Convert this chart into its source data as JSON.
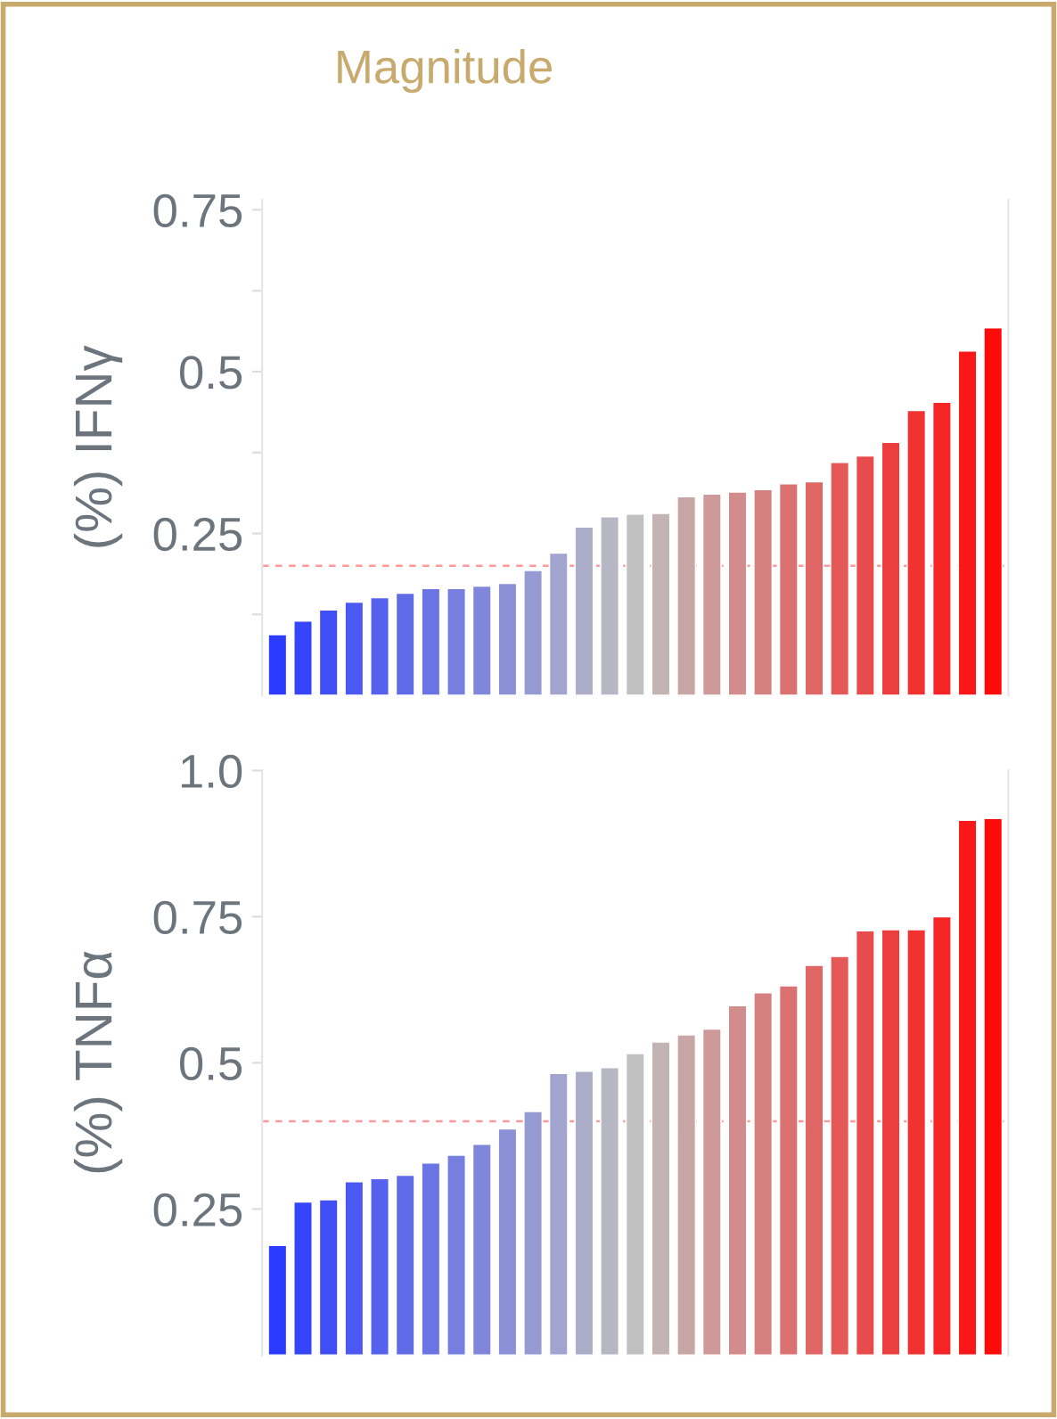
{
  "chart_data": [
    {
      "type": "bar",
      "title": "Magnitude",
      "ylabel": "(%) IFNγ",
      "tick_labels": "y",
      "grid": false,
      "legend": false,
      "categories": [
        null,
        null,
        null,
        null,
        null,
        null,
        null,
        null,
        null,
        null,
        null,
        null,
        null,
        null,
        null,
        null,
        null,
        null,
        null,
        null,
        null,
        null,
        null,
        null,
        null,
        null,
        null,
        null,
        null
      ],
      "values": [
        0.094,
        0.115,
        0.132,
        0.144,
        0.151,
        0.158,
        0.165,
        0.165,
        0.169,
        0.173,
        0.193,
        0.22,
        0.26,
        0.276,
        0.28,
        0.281,
        0.307,
        0.311,
        0.314,
        0.318,
        0.327,
        0.33,
        0.36,
        0.37,
        0.391,
        0.44,
        0.453,
        0.532,
        0.568
      ],
      "colors": [
        "#2b3bff",
        "#3645fa",
        "#404ef6",
        "#4b58f2",
        "#5661ed",
        "#606be8",
        "#6b74e4",
        "#767ee0",
        "#8087db",
        "#8b91d6",
        "#959ad2",
        "#a0a4ce",
        "#abadc9",
        "#b5b7c4",
        "#c0c0c0",
        "#c4b3b3",
        "#c9a6a6",
        "#ce9999",
        "#d28c8c",
        "#d67f7f",
        "#db7272",
        "#e06565",
        "#e45858",
        "#e84b4b",
        "#ed3e3e",
        "#f23131",
        "#f62424",
        "#fa1717",
        "#ff0a0a"
      ],
      "ylim": [
        0,
        0.765
      ],
      "yticks": [
        {
          "value": 0.125,
          "label": null
        },
        0.25,
        {
          "value": 0.375,
          "label": null
        },
        0.5,
        {
          "value": 0.625,
          "label": null
        },
        0.75
      ],
      "ref_lines": [
        {
          "axis": "y",
          "value": 0.2,
          "color": "#ff9999",
          "line_style": "dashed"
        }
      ]
    },
    {
      "type": "bar",
      "ylabel": "(%) TNFα",
      "tick_labels": "y",
      "grid": false,
      "legend": false,
      "categories": [
        null,
        null,
        null,
        null,
        null,
        null,
        null,
        null,
        null,
        null,
        null,
        null,
        null,
        null,
        null,
        null,
        null,
        null,
        null,
        null,
        null,
        null,
        null,
        null,
        null,
        null,
        null,
        null,
        null
      ],
      "values": [
        0.188,
        0.262,
        0.266,
        0.297,
        0.302,
        0.308,
        0.329,
        0.342,
        0.361,
        0.387,
        0.417,
        0.482,
        0.486,
        0.492,
        0.516,
        0.536,
        0.548,
        0.558,
        0.598,
        0.62,
        0.632,
        0.667,
        0.682,
        0.726,
        0.728,
        0.728,
        0.75,
        0.915,
        0.918
      ],
      "colors": [
        "#2b3bff",
        "#3645fa",
        "#404ef6",
        "#4b58f2",
        "#5661ed",
        "#606be8",
        "#6b74e4",
        "#767ee0",
        "#8087db",
        "#8b91d6",
        "#959ad2",
        "#a0a4ce",
        "#abadc9",
        "#b5b7c4",
        "#c0c0c0",
        "#c4b3b3",
        "#c9a6a6",
        "#ce9999",
        "#d28c8c",
        "#d67f7f",
        "#db7272",
        "#e06565",
        "#e45858",
        "#e84b4b",
        "#ed3e3e",
        "#f23131",
        "#f62424",
        "#fa1717",
        "#ff0a0a"
      ],
      "ylim": [
        0,
        1.0
      ],
      "yticks": [
        0.25,
        0.5,
        0.75,
        {
          "value": 1.0,
          "label": "1.0"
        }
      ],
      "ref_lines": [
        {
          "axis": "y",
          "value": 0.4,
          "color": "#ff9999",
          "line_style": "dashed"
        }
      ]
    }
  ]
}
